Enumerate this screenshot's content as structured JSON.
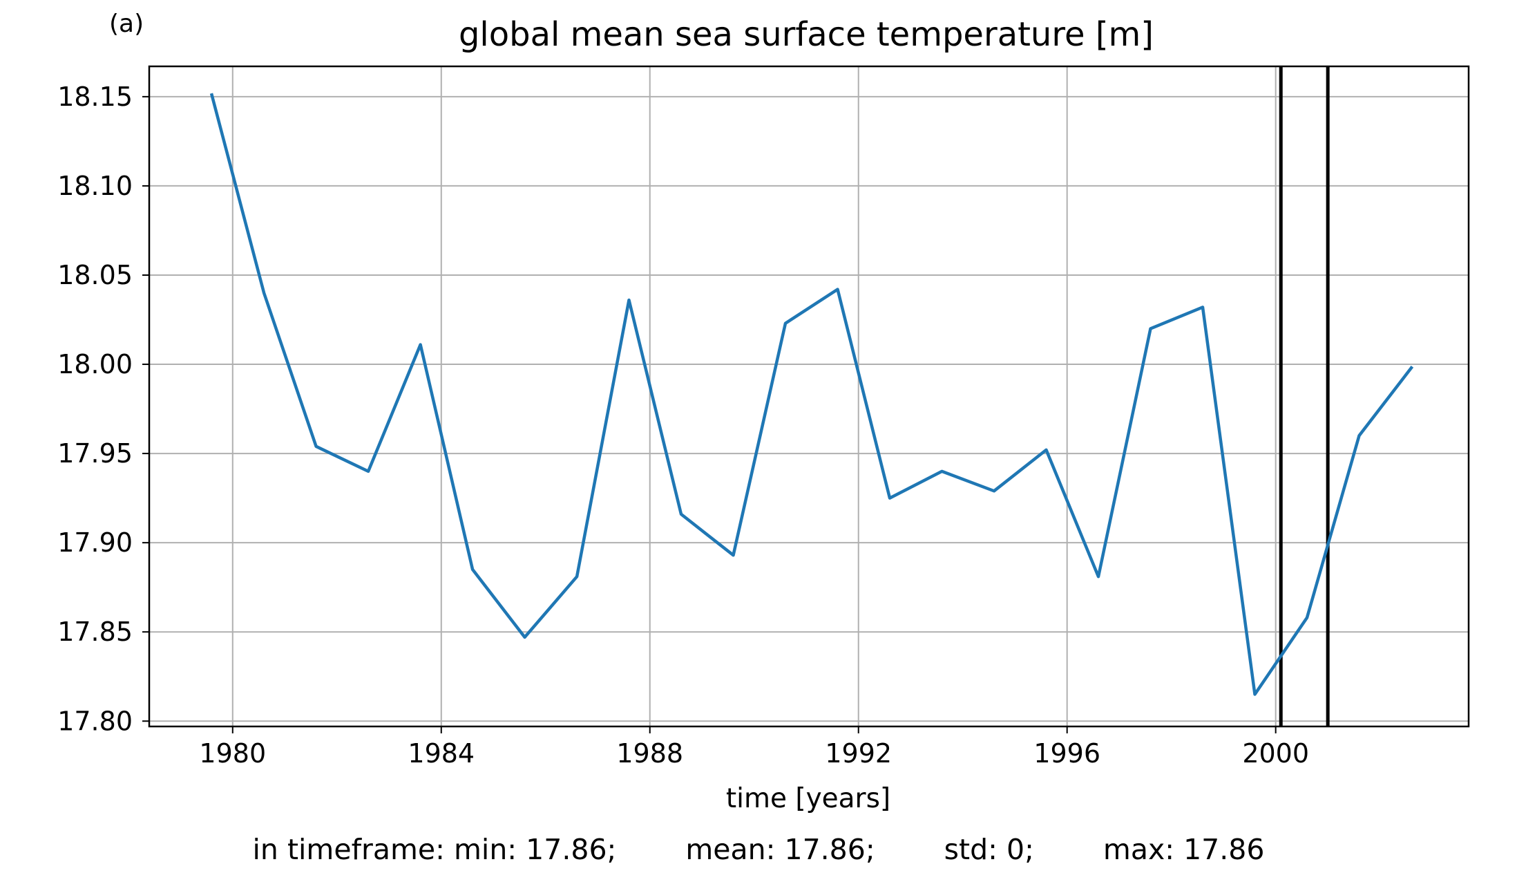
{
  "panel_label": "(a)",
  "chart_data": {
    "type": "line",
    "title": "global mean sea surface temperature [m]",
    "xlabel": "time [years]",
    "ylabel": "",
    "xlim": [
      1978.4,
      2003.7
    ],
    "ylim": [
      17.797,
      18.167
    ],
    "grid": true,
    "x_ticks": [
      1980,
      1984,
      1988,
      1992,
      1996,
      2000
    ],
    "y_ticks": [
      17.8,
      17.85,
      17.9,
      17.95,
      18.0,
      18.05,
      18.1,
      18.15
    ],
    "x_tick_labels": [
      "1980",
      "1984",
      "1988",
      "1992",
      "1996",
      "2000"
    ],
    "y_tick_labels": [
      "17.80",
      "17.85",
      "17.90",
      "17.95",
      "18.00",
      "18.05",
      "18.10",
      "18.15"
    ],
    "series": [
      {
        "color": "#1f77b4",
        "x": [
          1979.6,
          1980.6,
          1981.6,
          1982.6,
          1983.6,
          1984.6,
          1985.6,
          1986.6,
          1987.6,
          1988.6,
          1989.6,
          1990.6,
          1991.6,
          1992.6,
          1993.6,
          1994.6,
          1995.6,
          1996.6,
          1997.6,
          1998.6,
          1999.6,
          2000.6,
          2001.6,
          2002.6
        ],
        "values": [
          18.151,
          18.04,
          17.954,
          17.94,
          18.011,
          17.885,
          17.847,
          17.881,
          18.036,
          17.916,
          17.893,
          18.023,
          18.042,
          17.925,
          17.94,
          17.929,
          17.952,
          17.881,
          18.02,
          18.032,
          17.815,
          17.858,
          17.96,
          17.998
        ]
      }
    ],
    "vertical_lines": [
      {
        "x": 2000.1,
        "color": "#000000"
      },
      {
        "x": 2001.0,
        "color": "#000000"
      }
    ]
  },
  "footer": {
    "min": "in timeframe: min: 17.86;",
    "mean": "mean: 17.86;",
    "std": "std: 0;",
    "max": "max: 17.86"
  }
}
